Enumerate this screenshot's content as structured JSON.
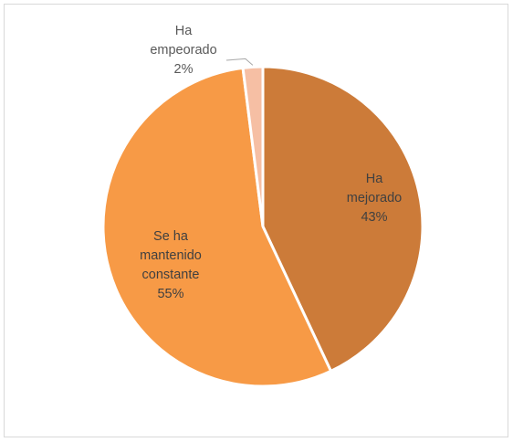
{
  "chart_data": {
    "type": "pie",
    "slices": [
      {
        "name": "Ha mejorado",
        "label_lines": [
          "Ha",
          "mejorado"
        ],
        "value": 43,
        "value_label": "43%",
        "color": "#cc7b39"
      },
      {
        "name": "Se ha mantenido constante",
        "label_lines": [
          "Se ha",
          "mantenido",
          "constante"
        ],
        "value": 55,
        "value_label": "55%",
        "color": "#f79a46"
      },
      {
        "name": "Ha empeorado",
        "label_lines": [
          "Ha",
          "empeorado"
        ],
        "value": 2,
        "value_label": "2%",
        "color": "#f6bfa4"
      }
    ],
    "start_angle_deg": 0,
    "direction": "clockwise",
    "title": "",
    "legend": "none"
  }
}
